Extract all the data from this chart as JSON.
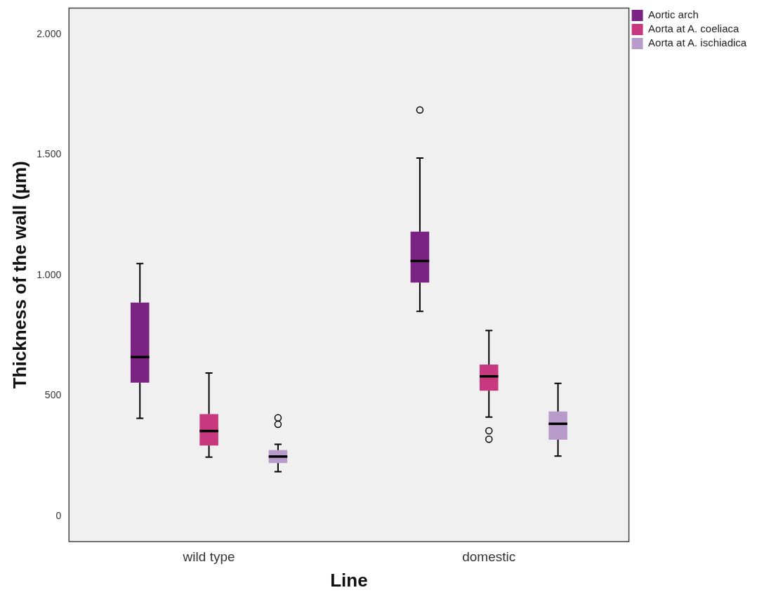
{
  "chart_data": {
    "type": "box",
    "xlabel": "Line",
    "ylabel": "Thickness of the wall (µm)",
    "categories": [
      "wild type",
      "domestic"
    ],
    "series": [
      {
        "name": "Aortic arch",
        "color": "#7b2383",
        "boxes": [
          {
            "low": 407,
            "q1": 555,
            "median": 661,
            "q3": 887,
            "high": 1049
          },
          {
            "low": 851,
            "q1": 970,
            "median": 1060,
            "q3": 1182,
            "high": 1487,
            "outliers": [
              1687
            ]
          }
        ]
      },
      {
        "name": "Aorta at A. coeliaca",
        "color": "#c8387e",
        "boxes": [
          {
            "low": 246,
            "q1": 294,
            "median": 354,
            "q3": 424,
            "high": 595
          },
          {
            "low": 412,
            "q1": 521,
            "median": 581,
            "q3": 630,
            "high": 771,
            "outliers": [
              355,
              320
            ]
          }
        ]
      },
      {
        "name": "Aorta at A. ischiadica",
        "color": "#b89acb",
        "boxes": [
          {
            "low": 185,
            "q1": 221,
            "median": 248,
            "q3": 275,
            "high": 299,
            "outliers": [
              409,
              382
            ]
          },
          {
            "low": 250,
            "q1": 318,
            "median": 384,
            "q3": 435,
            "high": 552
          }
        ]
      }
    ],
    "ylim": [
      -105,
      2110
    ],
    "yticks": [
      {
        "value": 0,
        "label": "0"
      },
      {
        "value": 500,
        "label": "500"
      },
      {
        "value": 1000,
        "label": "1.000"
      },
      {
        "value": 1500,
        "label": "1.500"
      },
      {
        "value": 2000,
        "label": "2.000"
      }
    ],
    "legend": "top right"
  }
}
